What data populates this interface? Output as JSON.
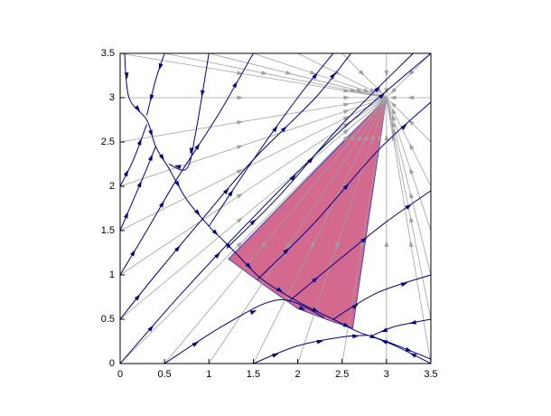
{
  "chart_data": {
    "type": "line",
    "xlim": [
      0,
      3.5
    ],
    "ylim": [
      0,
      3.5
    ],
    "xticks": [
      0,
      0.5,
      1,
      1.5,
      2,
      2.5,
      3,
      3.5
    ],
    "yticks": [
      0,
      0.5,
      1,
      1.5,
      2,
      2.5,
      3,
      3.5
    ],
    "focus": {
      "x": 3,
      "y": 3
    },
    "rays": {
      "color": "#a0a0a0",
      "x": [
        0,
        0,
        0,
        0,
        0,
        0,
        0,
        0,
        0.5,
        1,
        1.5,
        2,
        2.5,
        3,
        3.5,
        3.5,
        3.5,
        3.5,
        3.5,
        3.5,
        3.5,
        3.5,
        0.5,
        1,
        1.5,
        2,
        2.5,
        3
      ],
      "y": [
        0,
        0.5,
        1,
        1.5,
        2,
        2.5,
        3,
        3.5,
        3.5,
        3.5,
        3.5,
        3.5,
        3.5,
        3.5,
        3.5,
        0,
        0.5,
        1,
        1.5,
        2,
        2.5,
        3,
        0,
        0,
        0,
        0,
        0,
        0
      ]
    },
    "region": {
      "color": "#d4698f",
      "x": [
        1.22,
        3,
        2.62,
        2.4,
        2.0,
        1.6
      ],
      "y": [
        1.18,
        3,
        0.4,
        0.47,
        0.62,
        0.9
      ]
    },
    "series": [
      {
        "color": "#000080",
        "x": [
          0.05,
          0.1,
          0.3,
          0.4,
          0.55,
          0.75,
          1.0,
          1.15,
          1.3,
          1.6,
          2.0,
          2.4,
          2.7,
          3.0,
          3.5
        ],
        "y": [
          3.5,
          3.0,
          2.75,
          2.45,
          2.2,
          1.85,
          1.55,
          1.4,
          1.25,
          0.95,
          0.7,
          0.5,
          0.35,
          0.25,
          0.05
        ]
      },
      {
        "color": "#000080",
        "x": [
          0,
          0.7,
          1.5,
          2.4,
          3.5
        ],
        "y": [
          0,
          0.8,
          1.65,
          2.55,
          3.5
        ]
      },
      {
        "color": "#000080",
        "x": [
          0,
          0.4,
          0.9,
          1.5,
          2.2,
          2.6
        ],
        "y": [
          0.5,
          1.0,
          1.6,
          2.3,
          3.0,
          3.5
        ]
      },
      {
        "color": "#000080",
        "x": [
          0,
          0.3,
          0.65,
          1.1,
          1.5
        ],
        "y": [
          1.0,
          1.5,
          2.1,
          2.8,
          3.5
        ]
      },
      {
        "color": "#000080",
        "x": [
          0,
          0.15,
          0.3,
          0.4
        ],
        "y": [
          1.5,
          1.85,
          2.2,
          2.45
        ]
      },
      {
        "color": "#000080",
        "x": [
          0,
          0.15,
          0.3
        ],
        "y": [
          2.0,
          2.3,
          2.7
        ]
      },
      {
        "color": "#000080",
        "x": [
          0.5,
          0.4,
          0.3
        ],
        "y": [
          3.5,
          3.2,
          2.8
        ]
      },
      {
        "color": "#000080",
        "x": [
          1.0,
          0.85,
          0.75,
          0.55
        ],
        "y": [
          3.5,
          2.6,
          2.2,
          2.25
        ]
      },
      {
        "color": "#000080",
        "x": [
          1.0,
          1.5,
          2.0,
          2.4
        ],
        "y": [
          1.55,
          2.3,
          3.0,
          3.5
        ]
      },
      {
        "color": "#000080",
        "x": [
          1.2,
          1.8,
          2.5,
          3.3
        ],
        "y": [
          1.3,
          1.9,
          2.7,
          3.5
        ]
      },
      {
        "color": "#000080",
        "x": [
          1.55,
          2.2,
          2.9,
          3.5
        ],
        "y": [
          0.95,
          1.6,
          2.4,
          2.95
        ]
      },
      {
        "color": "#000080",
        "x": [
          1.9,
          2.5,
          3.0,
          3.5
        ],
        "y": [
          0.7,
          1.2,
          1.6,
          1.95
        ]
      },
      {
        "color": "#000080",
        "x": [
          2.4,
          2.9,
          3.5
        ],
        "y": [
          0.5,
          0.8,
          1.0
        ]
      },
      {
        "color": "#000080",
        "x": [
          0.5,
          1.2,
          1.8,
          2.3
        ],
        "y": [
          0,
          0.45,
          0.72,
          0.52
        ]
      },
      {
        "color": "#000080",
        "x": [
          1.5,
          2.0,
          2.5,
          2.8
        ],
        "y": [
          0,
          0.2,
          0.3,
          0.32
        ]
      },
      {
        "color": "#000080",
        "x": [
          3.5,
          3.1,
          2.85
        ],
        "y": [
          0,
          0.2,
          0.3
        ]
      },
      {
        "color": "#000080",
        "x": [
          3.5,
          3.1,
          2.85
        ],
        "y": [
          0.5,
          0.42,
          0.32
        ]
      }
    ]
  }
}
